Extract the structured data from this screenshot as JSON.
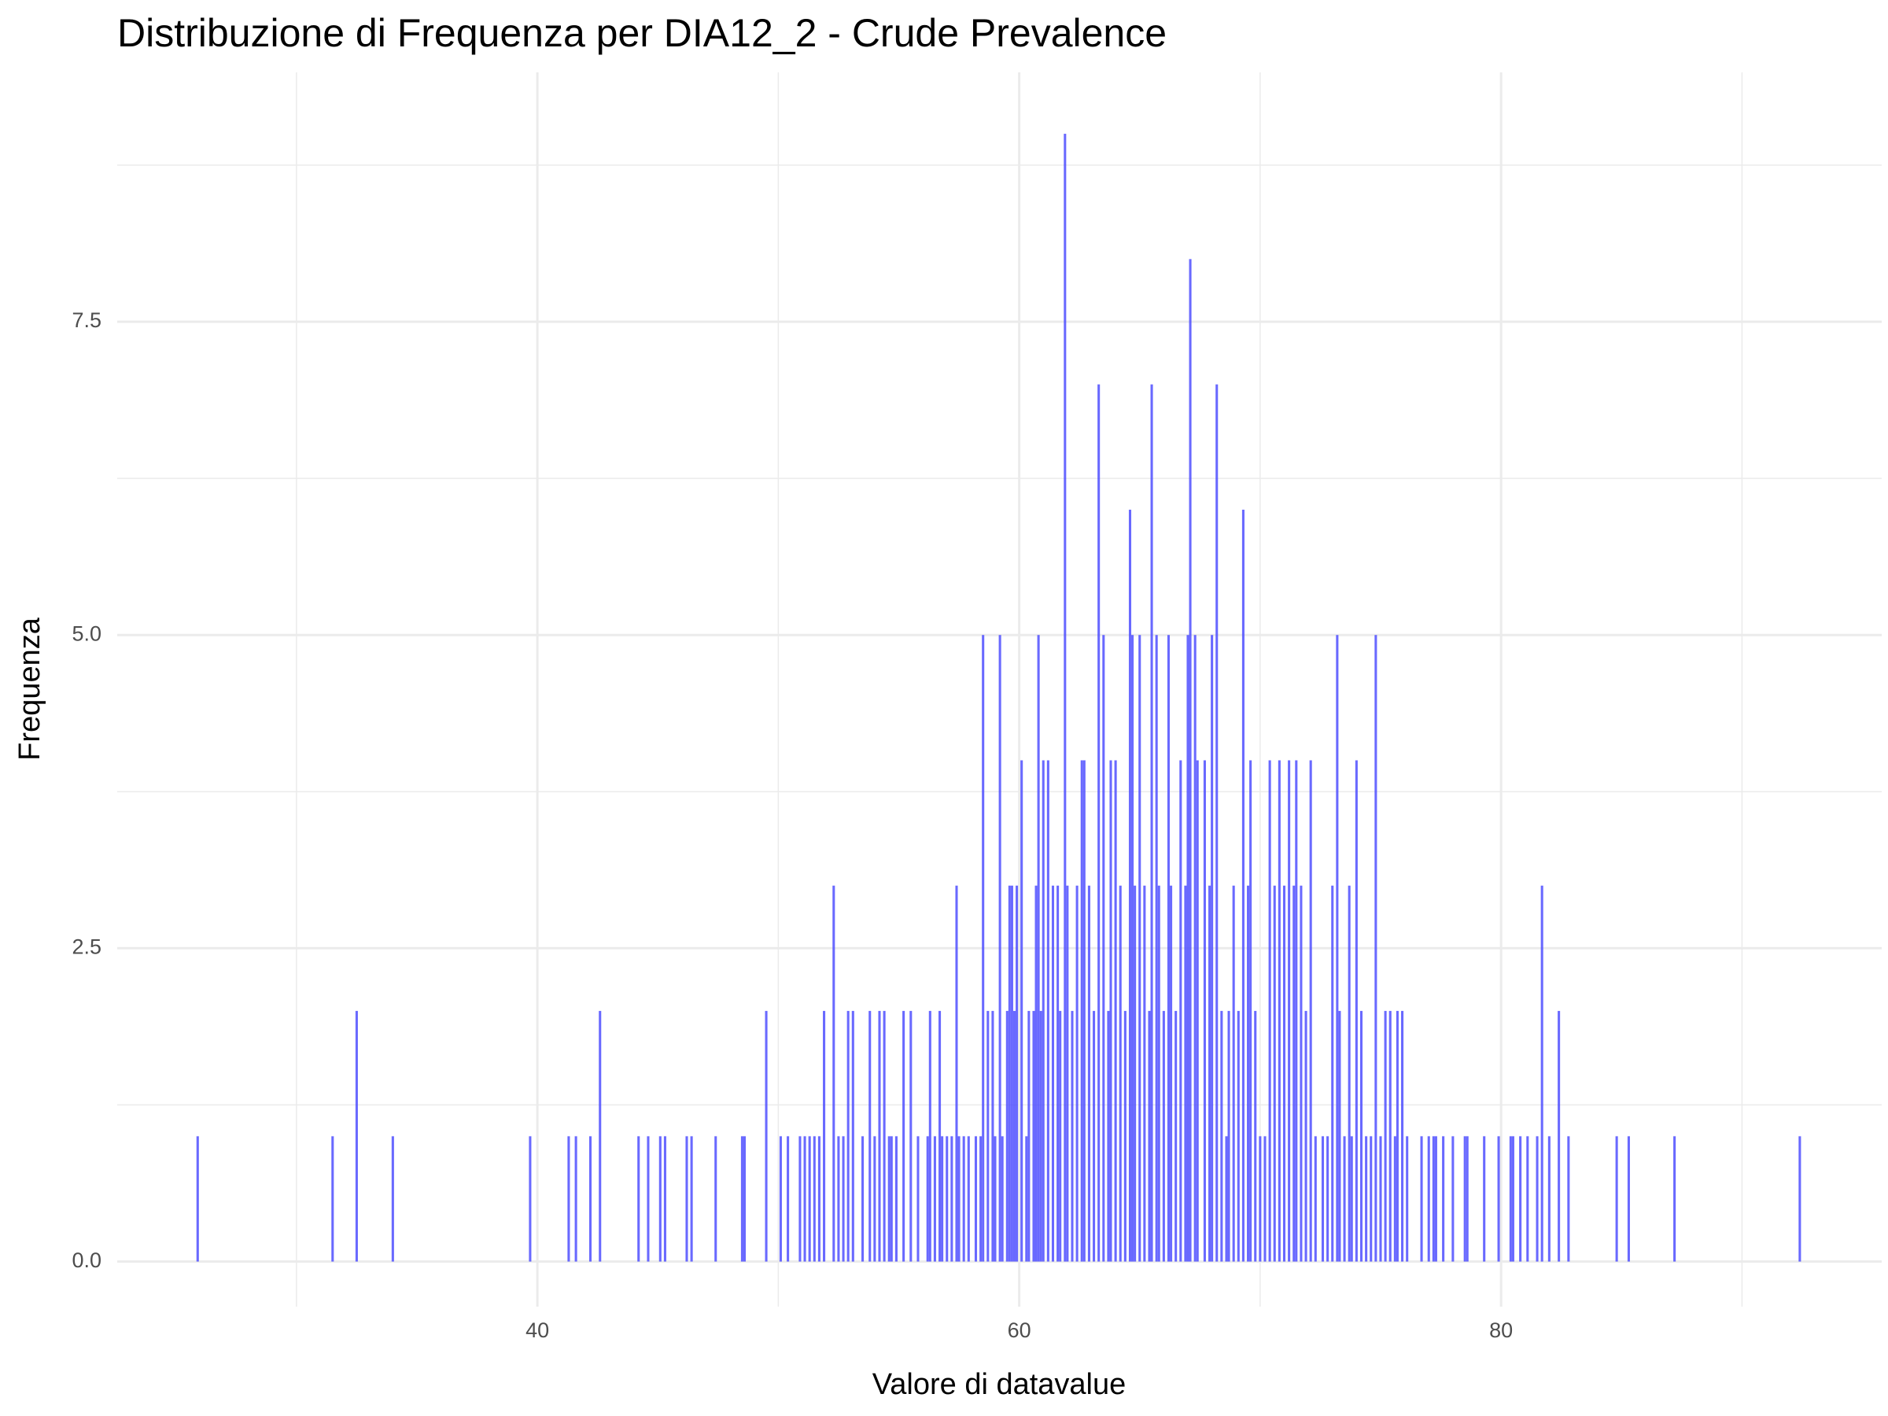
{
  "chart_data": {
    "type": "bar",
    "title": "Distribuzione di Frequenza per DIA12_2 - Crude Prevalence",
    "xlabel": "Valore di datavalue",
    "ylabel": "Frequenza",
    "color": "#4f4fff",
    "grid": true,
    "xlim": [
      22.56,
      95.8
    ],
    "ylim": [
      -0.36,
      9.49
    ],
    "xticks": [
      40,
      60,
      80
    ],
    "xminor_ticks": [
      30,
      50,
      70,
      90
    ],
    "yticks": [
      {
        "value": 0,
        "label": "0.0"
      },
      2.5,
      {
        "value": 5,
        "label": "5.0"
      },
      7.5
    ],
    "yminor_ticks": [
      1.25,
      3.75,
      6.25,
      8.75
    ],
    "x": [
      25.9,
      31.5,
      32.5,
      34.0,
      39.7,
      41.3,
      41.6,
      42.2,
      42.6,
      44.2,
      44.6,
      45.1,
      45.3,
      46.2,
      46.4,
      47.4,
      48.5,
      48.6,
      49.5,
      50.1,
      50.4,
      50.9,
      51.1,
      51.3,
      51.5,
      51.7,
      51.9,
      52.3,
      52.5,
      52.7,
      52.9,
      53.1,
      53.5,
      53.8,
      54.0,
      54.2,
      54.4,
      54.6,
      54.7,
      54.9,
      55.2,
      55.5,
      55.8,
      56.2,
      56.3,
      56.5,
      56.7,
      56.8,
      57.0,
      57.2,
      57.4,
      57.5,
      57.7,
      57.9,
      58.2,
      58.4,
      58.5,
      58.7,
      58.9,
      59.0,
      59.2,
      59.3,
      59.5,
      59.6,
      59.7,
      59.8,
      59.9,
      60.1,
      60.3,
      60.4,
      60.6,
      60.7,
      60.8,
      60.9,
      61.0,
      61.2,
      61.4,
      61.6,
      61.7,
      61.9,
      62.0,
      62.2,
      62.4,
      62.6,
      62.7,
      62.9,
      63.1,
      63.3,
      63.5,
      63.7,
      63.8,
      64.0,
      64.2,
      64.4,
      64.6,
      64.7,
      64.8,
      65.0,
      65.2,
      65.4,
      65.5,
      65.7,
      65.8,
      66.0,
      66.2,
      66.3,
      66.5,
      66.7,
      66.9,
      67.0,
      67.1,
      67.3,
      67.4,
      67.7,
      67.9,
      68.0,
      68.2,
      68.4,
      68.6,
      68.7,
      68.9,
      69.1,
      69.3,
      69.5,
      69.6,
      69.8,
      70.0,
      70.2,
      70.4,
      70.6,
      70.8,
      71.0,
      71.2,
      71.4,
      71.5,
      71.7,
      71.9,
      72.1,
      72.3,
      72.6,
      72.8,
      73.0,
      73.2,
      73.3,
      73.5,
      73.7,
      73.8,
      74.0,
      74.2,
      74.4,
      74.6,
      74.8,
      75.0,
      75.2,
      75.4,
      75.6,
      75.7,
      75.9,
      76.1,
      76.7,
      77.0,
      77.2,
      77.3,
      77.6,
      78.0,
      78.5,
      78.6,
      79.3,
      79.9,
      80.4,
      80.5,
      80.8,
      81.1,
      81.5,
      81.7,
      82.0,
      82.4,
      82.8,
      84.8,
      85.3,
      87.2,
      92.4
    ],
    "values": [
      1,
      1,
      2,
      1,
      1,
      1,
      1,
      1,
      2,
      1,
      1,
      1,
      1,
      1,
      1,
      1,
      1,
      1,
      2,
      1,
      1,
      1,
      1,
      1,
      1,
      1,
      2,
      3,
      1,
      1,
      2,
      2,
      1,
      2,
      1,
      2,
      2,
      1,
      1,
      1,
      2,
      2,
      1,
      1,
      2,
      1,
      2,
      1,
      1,
      1,
      3,
      1,
      1,
      1,
      1,
      1,
      5,
      2,
      2,
      1,
      5,
      1,
      2,
      3,
      3,
      2,
      3,
      4,
      1,
      2,
      2,
      3,
      5,
      2,
      4,
      4,
      3,
      3,
      2,
      9,
      3,
      2,
      3,
      4,
      4,
      3,
      2,
      7,
      5,
      2,
      4,
      4,
      3,
      2,
      6,
      5,
      3,
      5,
      3,
      2,
      7,
      5,
      3,
      2,
      5,
      3,
      2,
      4,
      3,
      5,
      8,
      5,
      4,
      4,
      3,
      5,
      7,
      2,
      1,
      2,
      3,
      2,
      6,
      3,
      4,
      2,
      1,
      1,
      4,
      3,
      4,
      3,
      4,
      3,
      4,
      3,
      2,
      4,
      1,
      1,
      1,
      3,
      5,
      2,
      1,
      3,
      1,
      4,
      2,
      1,
      1,
      5,
      1,
      2,
      2,
      1,
      2,
      2,
      1,
      1,
      1,
      1,
      1,
      1,
      1,
      1,
      1,
      1,
      1,
      1,
      1,
      1,
      1,
      1,
      3,
      1,
      2,
      1,
      1,
      1,
      1,
      1
    ]
  }
}
